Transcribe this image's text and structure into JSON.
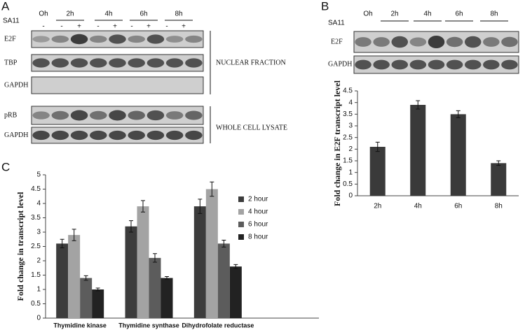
{
  "panel_labels": [
    "A",
    "B",
    "C"
  ],
  "blot_a": {
    "treatment": "SA11",
    "times": [
      "Oh",
      "2h",
      "4h",
      "6h",
      "8h"
    ],
    "signs": [
      "-",
      "-",
      "+",
      "-",
      "+",
      "-",
      "+",
      "-",
      "+"
    ],
    "rows": [
      "E2F",
      "TBP",
      "GAPDH",
      "pRB",
      "GAPDH"
    ],
    "fractions": [
      "NUCLEAR FRACTION",
      "WHOLE CELL LYSATE"
    ]
  },
  "blot_b": {
    "treatment": "SA11",
    "times": [
      "Oh",
      "2h",
      "4h",
      "6h",
      "8h"
    ],
    "rows": [
      "E2F",
      "GAPDH"
    ]
  },
  "chart_data": [
    {
      "type": "bar",
      "y_label": "Fold change in E2F transcript level",
      "categories": [
        "2h",
        "4h",
        "6h",
        "8h"
      ],
      "values": [
        2.1,
        3.9,
        3.5,
        1.4
      ],
      "errors": [
        0.2,
        0.18,
        0.15,
        0.1
      ],
      "color": "#3a3a3a",
      "ylim": [
        0,
        4.5
      ],
      "yticks": [
        0,
        0.5,
        1,
        1.5,
        2,
        2.5,
        3,
        3.5,
        4,
        4.5
      ]
    },
    {
      "type": "grouped-bar",
      "y_label": "Fold change in transcript level",
      "categories": [
        "Thymidine kinase",
        "Thymidine synthase",
        "Dihydrofolate reductase"
      ],
      "series": [
        {
          "name": "2 hour",
          "color": "#3c3c3c",
          "values": [
            2.6,
            3.2,
            3.9
          ],
          "errors": [
            0.15,
            0.2,
            0.25
          ]
        },
        {
          "name": "4 hour",
          "color": "#a3a3a3",
          "values": [
            2.9,
            3.9,
            4.5
          ],
          "errors": [
            0.2,
            0.2,
            0.25
          ]
        },
        {
          "name": "6 hour",
          "color": "#5c5c5c",
          "values": [
            1.4,
            2.1,
            2.6
          ],
          "errors": [
            0.08,
            0.15,
            0.12
          ]
        },
        {
          "name": "8 hour",
          "color": "#222222",
          "values": [
            1.0,
            1.4,
            1.8
          ],
          "errors": [
            0.05,
            0.05,
            0.07
          ]
        }
      ],
      "ylim": [
        0,
        5
      ],
      "yticks": [
        0,
        0.5,
        1,
        1.5,
        2,
        2.5,
        3,
        3.5,
        4,
        4.5,
        5
      ],
      "legend": "right"
    }
  ]
}
